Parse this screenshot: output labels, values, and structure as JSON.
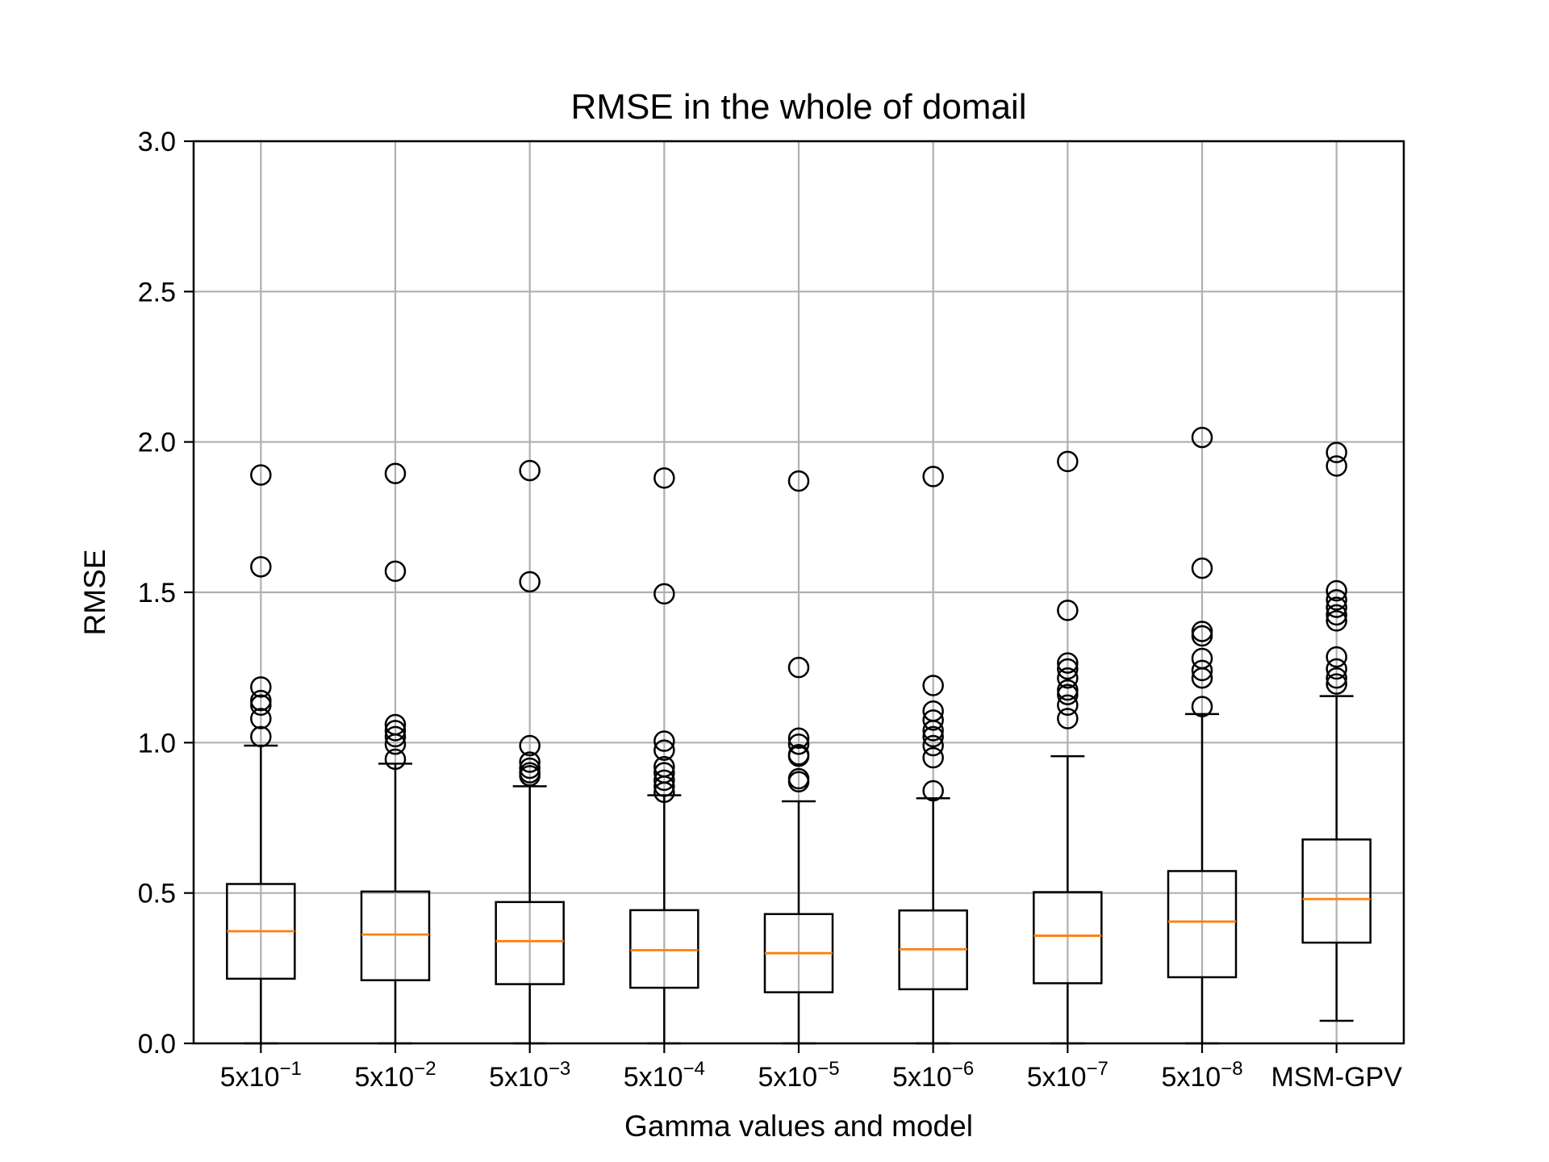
{
  "chart_data": {
    "type": "box",
    "title": "RMSE in the whole of domail",
    "xlabel": "Gamma values and model",
    "ylabel": "RMSE",
    "ylim": [
      0,
      3
    ],
    "yticks": [
      "0.0",
      "0.5",
      "1.0",
      "1.5",
      "2.0",
      "2.5",
      "3.0"
    ],
    "grid": true,
    "colors": {
      "median": "#ff7f0e",
      "box": "#000000",
      "grid": "#b0b0b0"
    },
    "categories": [
      {
        "base": "5x10",
        "exp": "−1"
      },
      {
        "base": "5x10",
        "exp": "−2"
      },
      {
        "base": "5x10",
        "exp": "−3"
      },
      {
        "base": "5x10",
        "exp": "−4"
      },
      {
        "base": "5x10",
        "exp": "−5"
      },
      {
        "base": "5x10",
        "exp": "−6"
      },
      {
        "base": "5x10",
        "exp": "−7"
      },
      {
        "base": "5x10",
        "exp": "−8"
      },
      {
        "base": "MSM-GPV",
        "exp": ""
      }
    ],
    "boxes": [
      {
        "whislo": 0.0,
        "q1": 0.215,
        "med": 0.373,
        "q3": 0.53,
        "whishi": 0.99,
        "fliers": [
          1.89,
          1.585,
          1.185,
          1.14,
          1.125,
          1.08,
          1.02
        ]
      },
      {
        "whislo": 0.0,
        "q1": 0.21,
        "med": 0.362,
        "q3": 0.505,
        "whishi": 0.93,
        "fliers": [
          1.895,
          1.57,
          1.06,
          1.04,
          1.02,
          0.995,
          0.945
        ]
      },
      {
        "whislo": 0.0,
        "q1": 0.197,
        "med": 0.34,
        "q3": 0.47,
        "whishi": 0.855,
        "fliers": [
          1.905,
          1.535,
          0.99,
          0.935,
          0.915,
          0.9,
          0.89
        ]
      },
      {
        "whislo": 0.0,
        "q1": 0.185,
        "med": 0.31,
        "q3": 0.443,
        "whishi": 0.825,
        "fliers": [
          1.88,
          1.495,
          1.005,
          0.975,
          0.92,
          0.9,
          0.875,
          0.855,
          0.835
        ]
      },
      {
        "whislo": 0.0,
        "q1": 0.17,
        "med": 0.3,
        "q3": 0.43,
        "whishi": 0.805,
        "fliers": [
          1.87,
          1.25,
          1.015,
          0.995,
          0.96,
          0.955,
          0.88,
          0.87
        ]
      },
      {
        "whislo": 0.0,
        "q1": 0.18,
        "med": 0.313,
        "q3": 0.442,
        "whishi": 0.815,
        "fliers": [
          1.885,
          1.19,
          1.105,
          1.075,
          1.04,
          1.02,
          0.99,
          0.95,
          0.84
        ]
      },
      {
        "whislo": 0.0,
        "q1": 0.2,
        "med": 0.358,
        "q3": 0.503,
        "whishi": 0.955,
        "fliers": [
          1.935,
          1.44,
          1.265,
          1.245,
          1.215,
          1.175,
          1.16,
          1.125,
          1.08
        ]
      },
      {
        "whislo": 0.0,
        "q1": 0.22,
        "med": 0.405,
        "q3": 0.573,
        "whishi": 1.095,
        "fliers": [
          2.015,
          1.58,
          1.37,
          1.355,
          1.28,
          1.24,
          1.215,
          1.12
        ]
      },
      {
        "whislo": 0.075,
        "q1": 0.335,
        "med": 0.48,
        "q3": 0.678,
        "whishi": 1.155,
        "fliers": [
          1.965,
          1.92,
          1.505,
          1.475,
          1.45,
          1.425,
          1.405,
          1.285,
          1.245,
          1.215,
          1.195
        ]
      }
    ]
  }
}
